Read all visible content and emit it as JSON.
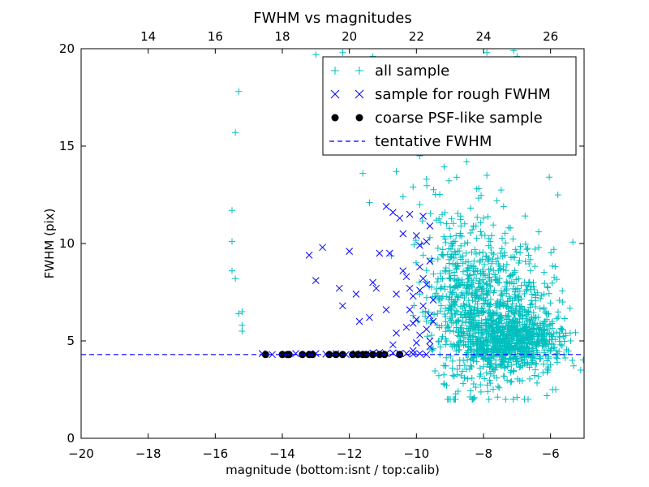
{
  "chart_data": {
    "type": "scatter",
    "title": "FWHM vs magnitudes",
    "xlabel": "magnitude (bottom:isnt / top:calib)",
    "ylabel": "FWHM (pix)",
    "xlim": [
      -20,
      -5
    ],
    "ylim": [
      0,
      20
    ],
    "x_ticks": [
      -20,
      -18,
      -16,
      -14,
      -12,
      -10,
      -8,
      -6
    ],
    "x_tick_labels": [
      "−20",
      "−18",
      "−16",
      "−14",
      "−12",
      "−10",
      "−8",
      "−6"
    ],
    "y_ticks": [
      0,
      5,
      10,
      15,
      20
    ],
    "y_tick_labels": [
      "0",
      "5",
      "10",
      "15",
      "20"
    ],
    "top_axis": {
      "offset": 32.0,
      "ticks": [
        14,
        16,
        18,
        20,
        22,
        24,
        26
      ],
      "tick_labels": [
        "14",
        "16",
        "18",
        "20",
        "22",
        "24",
        "26"
      ]
    },
    "grid": false,
    "legend_position": "top-right",
    "series": [
      {
        "name": "all sample",
        "marker": "plus",
        "color": "#00bfbf",
        "points": [
          [
            -15.3,
            17.8
          ],
          [
            -15.4,
            15.7
          ],
          [
            -15.5,
            11.7
          ],
          [
            -15.5,
            10.1
          ],
          [
            -15.5,
            8.6
          ],
          [
            -15.4,
            8.2
          ],
          [
            -15.3,
            6.4
          ],
          [
            -15.2,
            6.5
          ],
          [
            -15.2,
            5.8
          ],
          [
            -15.2,
            5.5
          ],
          [
            -13.0,
            19.7
          ],
          [
            -12.2,
            18.9
          ],
          [
            -11.6,
            13.6
          ],
          [
            -11.4,
            12.1
          ],
          [
            -10.6,
            13.7
          ],
          [
            -10.4,
            12.4
          ],
          [
            -10.1,
            12.9
          ],
          [
            -9.9,
            12.0
          ],
          [
            -9.7,
            13.3
          ],
          [
            -9.9,
            14.5
          ],
          [
            -12.2,
            19.8
          ],
          [
            -11.3,
            19.6
          ],
          [
            -7.9,
            19.8
          ],
          [
            -7.1,
            19.9
          ],
          [
            -7.0,
            19.6
          ],
          [
            -6.5,
            15.1
          ],
          [
            -6.4,
            14.7
          ],
          [
            -5.9,
            9.7
          ],
          [
            -5.4,
            5.0
          ],
          [
            -5.1,
            3.5
          ],
          [
            -9.2,
            15.8
          ],
          [
            -9.0,
            14.8
          ],
          [
            -8.8,
            13.4
          ],
          [
            -8.5,
            14.2
          ],
          [
            -8.2,
            12.8
          ],
          [
            -7.9,
            13.5
          ],
          [
            -7.6,
            12.2
          ],
          [
            -7.4,
            11.9
          ],
          [
            -7.2,
            10.8
          ],
          [
            -9.4,
            11.2
          ],
          [
            -9.6,
            10.3
          ],
          [
            -9.8,
            9.4
          ],
          [
            -9.9,
            7.4
          ],
          [
            -10.1,
            6.3
          ],
          [
            -9.3,
            7.1
          ],
          [
            -8.7,
            10.4
          ],
          [
            -8.3,
            10.9
          ],
          [
            -8.0,
            11.3
          ],
          [
            -7.8,
            10.1
          ],
          [
            -7.5,
            9.5
          ],
          [
            -9.5,
            4.6
          ],
          [
            -9.3,
            4.3
          ],
          [
            -8.6,
            4.0
          ],
          [
            -8.2,
            4.5
          ],
          [
            -8.1,
            3.6
          ],
          [
            -7.8,
            3.3
          ],
          [
            -7.6,
            3.1
          ],
          [
            -7.4,
            3.2
          ],
          [
            -7.0,
            2.1
          ],
          [
            -6.9,
            3.7
          ],
          [
            -6.6,
            4.2
          ],
          [
            -6.4,
            4.9
          ],
          [
            -6.2,
            5.4
          ],
          [
            -6.0,
            4.5
          ],
          [
            -5.6,
            4.3
          ],
          [
            -5.8,
            3.9
          ],
          [
            -6.1,
            3.4
          ],
          [
            -6.7,
            3.8
          ],
          [
            -6.3,
            4.1
          ],
          [
            -5.7,
            4.8
          ]
        ],
        "clusters": [
          {
            "cx": -7.8,
            "cy": 6.5,
            "sx": 0.85,
            "sy": 2.0,
            "count": 750,
            "seed": 11
          },
          {
            "cx": -7.4,
            "cy": 4.9,
            "sx": 0.75,
            "sy": 0.75,
            "count": 450,
            "seed": 23
          },
          {
            "cx": -8.8,
            "cy": 8.8,
            "sx": 0.45,
            "sy": 2.2,
            "count": 160,
            "seed": 37
          },
          {
            "cx": -6.6,
            "cy": 5.2,
            "sx": 0.55,
            "sy": 0.8,
            "count": 170,
            "seed": 41
          }
        ]
      },
      {
        "name": "sample for rough FWHM",
        "marker": "x",
        "color": "#0000ff",
        "points": [
          [
            -13.2,
            9.4
          ],
          [
            -12.8,
            9.8
          ],
          [
            -12.0,
            9.6
          ],
          [
            -13.0,
            8.1
          ],
          [
            -12.3,
            7.7
          ],
          [
            -12.2,
            6.8
          ],
          [
            -11.8,
            7.4
          ],
          [
            -11.7,
            6.0
          ],
          [
            -11.4,
            6.2
          ],
          [
            -11.3,
            8.0
          ],
          [
            -11.2,
            7.7
          ],
          [
            -11.1,
            9.5
          ],
          [
            -10.8,
            9.5
          ],
          [
            -10.9,
            6.6
          ],
          [
            -10.6,
            7.4
          ],
          [
            -10.9,
            11.9
          ],
          [
            -10.7,
            11.6
          ],
          [
            -10.5,
            11.3
          ],
          [
            -10.4,
            10.5
          ],
          [
            -10.2,
            11.5
          ],
          [
            -10.4,
            8.6
          ],
          [
            -10.2,
            7.7
          ],
          [
            -10.1,
            7.3
          ],
          [
            -9.9,
            7.6
          ],
          [
            -9.8,
            8.2
          ],
          [
            -9.9,
            9.9
          ],
          [
            -10.0,
            10.4
          ],
          [
            -9.7,
            10.1
          ],
          [
            -9.6,
            10.9
          ],
          [
            -9.8,
            11.4
          ],
          [
            -10.3,
            5.7
          ],
          [
            -10.1,
            5.9
          ],
          [
            -9.9,
            5.3
          ],
          [
            -10.6,
            5.4
          ],
          [
            -10.2,
            6.6
          ],
          [
            -9.6,
            6.3
          ],
          [
            -10.0,
            4.9
          ],
          [
            -9.7,
            5.6
          ],
          [
            -10.1,
            4.5
          ],
          [
            -9.6,
            5.0
          ],
          [
            -9.5,
            7.1
          ],
          [
            -9.8,
            6.8
          ],
          [
            -10.0,
            6.1
          ],
          [
            -9.7,
            7.9
          ],
          [
            -9.6,
            9.1
          ],
          [
            -9.5,
            6.0
          ],
          [
            -10.7,
            4.8
          ],
          [
            -10.3,
            8.3
          ],
          [
            -9.9,
            8.8
          ],
          [
            -9.6,
            4.7
          ],
          [
            -14.6,
            4.35
          ],
          [
            -14.3,
            4.3
          ],
          [
            -13.9,
            4.32
          ],
          [
            -13.6,
            4.35
          ],
          [
            -13.3,
            4.32
          ],
          [
            -13.0,
            4.35
          ],
          [
            -12.7,
            4.32
          ],
          [
            -12.4,
            4.35
          ],
          [
            -12.1,
            4.3
          ],
          [
            -11.8,
            4.35
          ],
          [
            -11.5,
            4.32
          ],
          [
            -11.3,
            4.38
          ],
          [
            -11.1,
            4.4
          ],
          [
            -10.9,
            4.35
          ],
          [
            -10.7,
            4.38
          ],
          [
            -10.5,
            4.35
          ],
          [
            -10.3,
            4.35
          ],
          [
            -10.1,
            4.32
          ],
          [
            -9.9,
            4.35
          ],
          [
            -9.7,
            4.3
          ]
        ]
      },
      {
        "name": "coarse PSF-like sample",
        "marker": "dot",
        "color": "#000000",
        "points": [
          [
            -14.5,
            4.3
          ],
          [
            -14.0,
            4.3
          ],
          [
            -13.85,
            4.3
          ],
          [
            -13.8,
            4.3
          ],
          [
            -13.4,
            4.3
          ],
          [
            -13.2,
            4.3
          ],
          [
            -13.1,
            4.3
          ],
          [
            -12.6,
            4.3
          ],
          [
            -12.4,
            4.3
          ],
          [
            -12.2,
            4.3
          ],
          [
            -11.9,
            4.3
          ],
          [
            -11.75,
            4.3
          ],
          [
            -11.6,
            4.3
          ],
          [
            -11.5,
            4.3
          ],
          [
            -11.3,
            4.3
          ],
          [
            -11.1,
            4.3
          ],
          [
            -10.95,
            4.3
          ],
          [
            -10.5,
            4.3
          ]
        ]
      },
      {
        "name": "tentative FWHM",
        "marker": "dashed-line",
        "color": "#0000ff",
        "y": 4.3
      }
    ]
  }
}
